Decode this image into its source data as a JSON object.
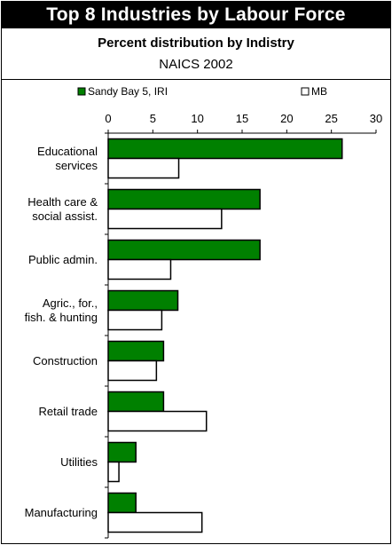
{
  "chart_data": {
    "type": "bar",
    "orientation": "horizontal",
    "title": "Top 8 Industries by Labour Force",
    "subtitle": "Percent distribution by Indistry",
    "subsubtitle": "NAICS 2002",
    "xlim": [
      0,
      30
    ],
    "xticks": [
      0,
      5,
      10,
      15,
      20,
      25,
      30
    ],
    "legend_position": "top",
    "categories": [
      [
        "Educational",
        "services"
      ],
      [
        "Health care &",
        "social assist."
      ],
      [
        "Public admin."
      ],
      [
        "Agric., for.,",
        "fish. & hunting"
      ],
      [
        "Construction"
      ],
      [
        "Retail trade"
      ],
      [
        "Utilities"
      ],
      [
        "Manufacturing"
      ]
    ],
    "series": [
      {
        "name": "Sandy Bay 5, IRI",
        "color": "#008000",
        "values": [
          26.2,
          17.0,
          17.0,
          7.8,
          6.2,
          6.2,
          3.1,
          3.1
        ]
      },
      {
        "name": "MB",
        "color": "#ffffff",
        "values": [
          7.9,
          12.7,
          7.0,
          6.0,
          5.4,
          11.0,
          1.2,
          10.5
        ]
      }
    ]
  }
}
